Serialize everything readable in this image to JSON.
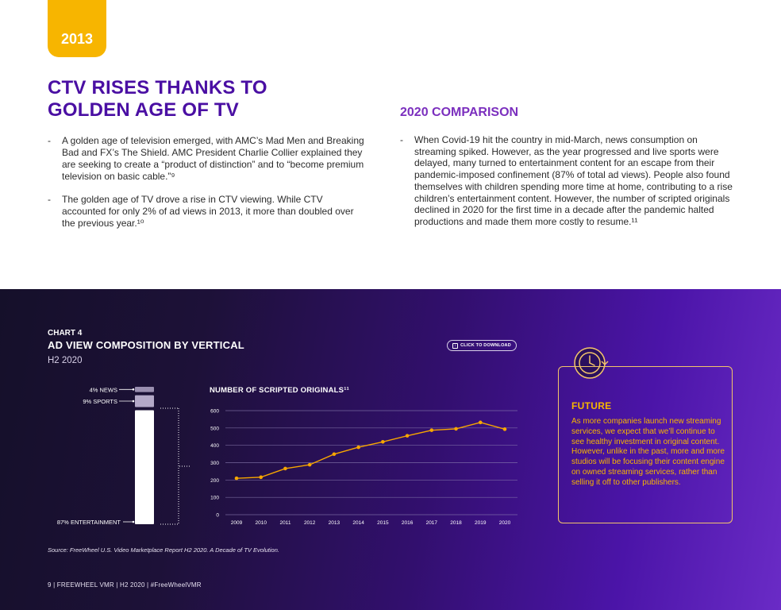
{
  "year_tab": "2013",
  "title": "CTV RISES THANKS TO GOLDEN AGE OF TV",
  "left_bullets": [
    "A golden age of television emerged, with AMC’s Mad Men and Breaking Bad and FX’s The Shield. AMC President Charlie Collier explained they are seeking to create a “product of distinction” and to “become premium television on basic cable.”⁹",
    "The golden age of TV drove a rise in CTV viewing. While CTV accounted for only 2% of ad views in 2013, it more than doubled over the previous year.¹⁰"
  ],
  "comparison": {
    "title": "2020 COMPARISON",
    "bullets": [
      "When Covid-19 hit the country in mid-March, news consumption on streaming spiked. However, as the year progressed and live sports were delayed, many turned to entertainment content for an escape from their pandemic-imposed confinement (87% of total ad views). People also found themselves with children spending more time at home, contributing to a rise children’s entertainment content. However, the number of scripted originals declined in 2020 for the first time in a decade after the pandemic halted productions and made them more costly to resume.¹¹"
    ]
  },
  "chart": {
    "label": "CHART 4",
    "title": "AD VIEW COMPOSITION BY VERTICAL",
    "period": "H2 2020",
    "download_label": "CLICK TO DOWNLOAD",
    "source": "Source: FreeWheel U.S. Video Marketplace Report H2 2020. A Decade of TV Evolution."
  },
  "future": {
    "title": "FUTURE",
    "text": "As more companies launch new streaming services, we expect that we’ll continue to see healthy investment in original content. However, unlike in the past, more and more studios will be focusing their content engine on owned streaming services, rather than selling it off to other publishers."
  },
  "footer": "9  |  FREEWHEEL VMR  |  H2 2020  |  #FreeWheelVMR",
  "colors": {
    "accent_purple": "#4a0fa3",
    "accent_yellow": "#f7b500",
    "line_orange": "#f7a600"
  },
  "chart_data": [
    {
      "type": "bar",
      "title": "AD VIEW COMPOSITION BY VERTICAL",
      "stacked": true,
      "categories": [
        "H2 2020"
      ],
      "series": [
        {
          "name": "NEWS",
          "label": "4% NEWS",
          "values": [
            4
          ]
        },
        {
          "name": "SPORTS",
          "label": "9% SPORTS",
          "values": [
            9
          ]
        },
        {
          "name": "ENTERTAINMENT",
          "label": "87% ENTERTAINMENT",
          "values": [
            87
          ]
        }
      ],
      "ylim": [
        0,
        100
      ]
    },
    {
      "type": "line",
      "title": "NUMBER OF SCRIPTED ORIGINALS¹¹",
      "x": [
        "2009",
        "2010",
        "2011",
        "2012",
        "2013",
        "2014",
        "2015",
        "2016",
        "2017",
        "2018",
        "2019",
        "2020"
      ],
      "series": [
        {
          "name": "Scripted originals",
          "values": [
            210,
            216,
            266,
            288,
            349,
            389,
            420,
            455,
            487,
            495,
            532,
            493
          ]
        }
      ],
      "yticks": [
        "0",
        "100",
        "200",
        "300",
        "400",
        "500",
        "600"
      ],
      "ylim": [
        0,
        600
      ],
      "xlabel": "",
      "ylabel": ""
    }
  ]
}
